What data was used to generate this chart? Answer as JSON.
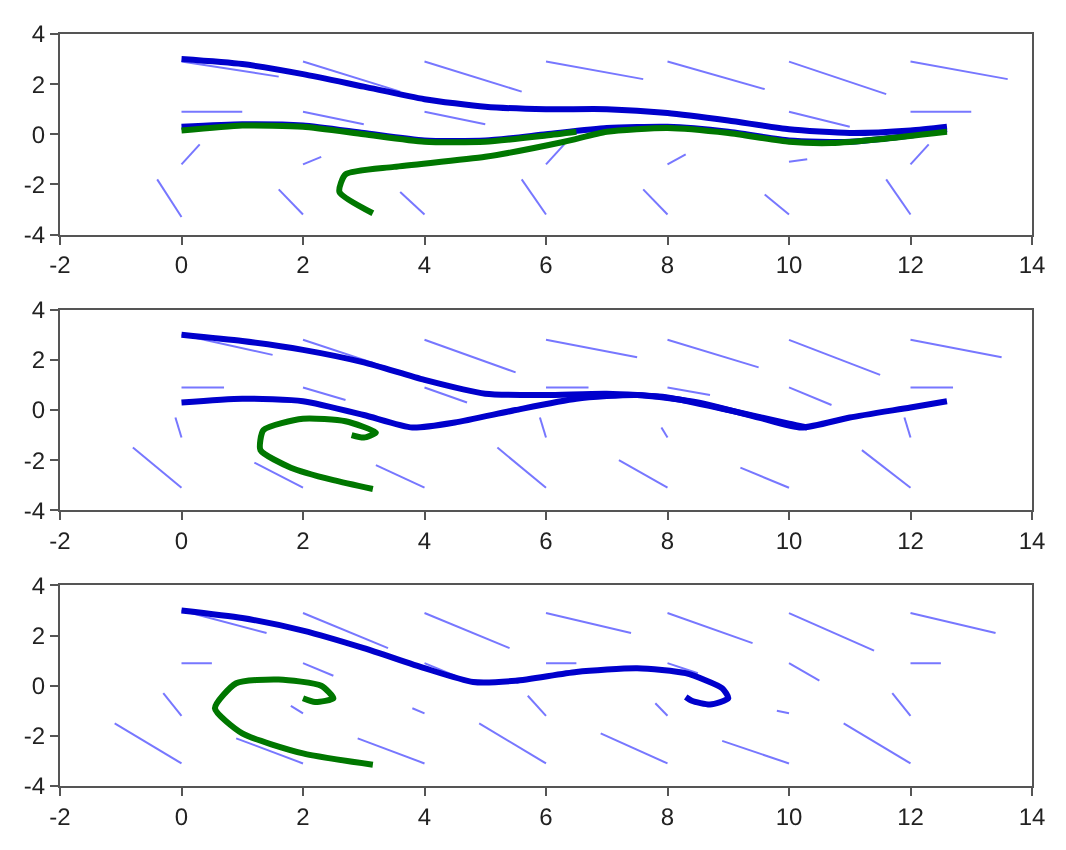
{
  "chart_data": [
    {
      "type": "line",
      "xlim": [
        -2,
        14
      ],
      "ylim": [
        -4,
        4
      ],
      "xticks": [
        -2,
        0,
        2,
        4,
        6,
        8,
        10,
        12,
        14
      ],
      "yticks": [
        -4,
        -2,
        0,
        2,
        4
      ],
      "series": [
        {
          "color": "#7777ff",
          "x": [
            0,
            1.6,
            null,
            2,
            3.6,
            null,
            4,
            5.6,
            null,
            6,
            7.6,
            null,
            8,
            9.6,
            null,
            10,
            11.6,
            null,
            12,
            13.6,
            null,
            0,
            1,
            null,
            2,
            3,
            null,
            4,
            5,
            null,
            10,
            11,
            null,
            12,
            13,
            null,
            0,
            0.3,
            null,
            2,
            2.3,
            null,
            6,
            6.3,
            null,
            8,
            8.3,
            null,
            10,
            10.3,
            null,
            12,
            12.3,
            null,
            0,
            -0.4,
            null,
            2,
            1.6,
            null,
            4,
            3.6,
            null,
            6,
            5.6,
            null,
            8,
            7.6,
            null,
            10,
            9.6,
            null,
            12,
            11.6,
            null
          ],
          "values": [
            2.9,
            2.3,
            null,
            2.9,
            1.7,
            null,
            2.9,
            1.7,
            null,
            2.9,
            2.2,
            null,
            2.9,
            1.8,
            null,
            2.9,
            1.6,
            null,
            2.9,
            2.2,
            null,
            0.9,
            0.9,
            null,
            0.9,
            0.4,
            null,
            0.9,
            0.4,
            null,
            0.9,
            0.3,
            null,
            0.9,
            0.9,
            null,
            -1.2,
            -0.4,
            null,
            -1.2,
            -0.9,
            null,
            -1.2,
            -0.4,
            null,
            -1.2,
            -0.8,
            null,
            -1.1,
            -1.0,
            null,
            -1.2,
            -0.4,
            null,
            -3.3,
            -1.8,
            null,
            -3.2,
            -2.2,
            null,
            -3.2,
            -2.3,
            null,
            -3.2,
            -1.8,
            null,
            -3.2,
            -2.2,
            null,
            -3.2,
            -2.4,
            null,
            -3.2,
            -1.8,
            null
          ]
        },
        {
          "color": "#0000cc",
          "x": [
            0,
            1,
            2,
            3,
            4,
            5,
            6,
            7,
            8,
            9,
            10,
            11,
            12,
            12.6
          ],
          "values": [
            3,
            2.8,
            2.4,
            1.9,
            1.4,
            1.1,
            1.0,
            1.0,
            0.85,
            0.55,
            0.2,
            0.05,
            0.15,
            0.3
          ]
        },
        {
          "color": "#0000cc",
          "x": [
            0,
            1,
            2,
            3,
            4,
            5,
            6,
            7,
            8,
            9,
            10,
            11,
            12,
            12.6
          ],
          "values": [
            0.3,
            0.4,
            0.35,
            0.05,
            -0.25,
            -0.25,
            0,
            0.25,
            0.3,
            0.1,
            -0.25,
            -0.3,
            -0.05,
            0.2
          ]
        },
        {
          "color": "#007700",
          "x": [
            0,
            1,
            2,
            3,
            4,
            5,
            6,
            6.5
          ],
          "values": [
            0.15,
            0.35,
            0.3,
            0,
            -0.3,
            -0.3,
            -0.05,
            0.1
          ]
        },
        {
          "color": "#007700",
          "x": [
            3.15,
            2.6,
            2.7,
            3.5,
            5,
            6.3,
            7,
            8,
            9,
            10,
            10.7,
            11.5,
            12.6
          ],
          "values": [
            -3.15,
            -2.3,
            -1.6,
            -1.3,
            -0.9,
            -0.3,
            0.1,
            0.25,
            0.05,
            -0.3,
            -0.35,
            -0.2,
            0.1
          ]
        }
      ]
    },
    {
      "type": "line",
      "xlim": [
        -2,
        14
      ],
      "ylim": [
        -4,
        4
      ],
      "xticks": [
        -2,
        0,
        2,
        4,
        6,
        8,
        10,
        12,
        14
      ],
      "yticks": [
        -4,
        -2,
        0,
        2,
        4
      ],
      "series": [
        {
          "color": "#7777ff",
          "x": [
            0,
            1.5,
            null,
            2,
            3.5,
            null,
            4,
            5.5,
            null,
            6,
            7.5,
            null,
            8,
            9.5,
            null,
            10,
            11.5,
            null,
            12,
            13.5,
            null,
            0,
            0.7,
            null,
            2,
            2.7,
            null,
            4,
            4.7,
            null,
            6,
            6.7,
            null,
            8,
            8.7,
            null,
            10,
            10.7,
            null,
            12,
            12.7,
            null,
            0,
            -0.1,
            null,
            6,
            5.9,
            null,
            8,
            7.9,
            null,
            12,
            11.9,
            null,
            0,
            -0.8,
            null,
            2,
            1.2,
            null,
            4,
            3.2,
            null,
            6,
            5.2,
            null,
            8,
            7.2,
            null,
            10,
            9.2,
            null,
            12,
            11.2,
            null
          ],
          "values": [
            3,
            2.2,
            null,
            2.8,
            1.6,
            null,
            2.8,
            1.5,
            null,
            2.8,
            2.1,
            null,
            2.8,
            1.7,
            null,
            2.8,
            1.4,
            null,
            2.8,
            2.1,
            null,
            0.9,
            0.9,
            null,
            0.9,
            0.4,
            null,
            0.9,
            0.3,
            null,
            0.9,
            0.9,
            null,
            0.9,
            0.6,
            null,
            0.9,
            0.2,
            null,
            0.9,
            0.9,
            null,
            -1.1,
            -0.3,
            null,
            -1.1,
            -0.3,
            null,
            -1.1,
            -0.7,
            null,
            -1.1,
            -0.3,
            null,
            -3.1,
            -1.5,
            null,
            -3.1,
            -2.1,
            null,
            -3.1,
            -2.2,
            null,
            -3.1,
            -1.5,
            null,
            -3.1,
            -2.0,
            null,
            -3.1,
            -2.3,
            null,
            -3.1,
            -1.6,
            null
          ]
        },
        {
          "color": "#0000cc",
          "x": [
            0,
            1,
            2,
            3,
            4,
            5,
            6,
            7,
            8,
            9,
            10,
            10.3
          ],
          "values": [
            3,
            2.75,
            2.4,
            1.9,
            1.2,
            0.65,
            0.6,
            0.65,
            0.5,
            0,
            -0.55,
            -0.7
          ]
        },
        {
          "color": "#0000cc",
          "x": [
            0,
            1,
            2,
            3,
            3.8,
            4.5,
            5.5,
            6.5,
            7.5,
            8.5,
            9.5,
            10.2,
            11,
            12,
            12.6
          ],
          "values": [
            0.3,
            0.45,
            0.35,
            -0.2,
            -0.7,
            -0.5,
            0,
            0.45,
            0.6,
            0.3,
            -0.3,
            -0.7,
            -0.3,
            0.1,
            0.35
          ]
        },
        {
          "color": "#007700",
          "x": [
            3.15,
            2.5,
            1.8,
            1.3,
            1.35,
            2,
            2.7,
            3.2,
            3,
            2.8
          ],
          "values": [
            -3.15,
            -2.8,
            -2.3,
            -1.6,
            -0.8,
            -0.35,
            -0.45,
            -0.9,
            -1.1,
            -1.0
          ]
        }
      ]
    },
    {
      "type": "line",
      "xlim": [
        -2,
        14
      ],
      "ylim": [
        -4,
        4
      ],
      "xticks": [
        -2,
        0,
        2,
        4,
        6,
        8,
        10,
        12,
        14
      ],
      "yticks": [
        -4,
        -2,
        0,
        2,
        4
      ],
      "series": [
        {
          "color": "#7777ff",
          "x": [
            0,
            1.4,
            null,
            2,
            3.4,
            null,
            4,
            5.4,
            null,
            6,
            7.4,
            null,
            8,
            9.4,
            null,
            10,
            11.4,
            null,
            12,
            13.4,
            null,
            0,
            0.5,
            null,
            2,
            2.5,
            null,
            4,
            4.5,
            null,
            6,
            6.5,
            null,
            8,
            8.5,
            null,
            10,
            10.5,
            null,
            12,
            12.5,
            null,
            0,
            -0.3,
            null,
            2,
            1.8,
            null,
            4,
            3.8,
            null,
            6,
            5.7,
            null,
            8,
            7.8,
            null,
            10,
            9.8,
            null,
            12,
            11.7,
            null,
            0,
            -1.1,
            null,
            2,
            0.9,
            null,
            4,
            2.9,
            null,
            6,
            4.9,
            null,
            8,
            6.9,
            null,
            10,
            8.9,
            null,
            12,
            10.9,
            null
          ],
          "values": [
            3,
            2.1,
            null,
            2.9,
            1.5,
            null,
            2.9,
            1.5,
            null,
            2.9,
            2.1,
            null,
            2.9,
            1.7,
            null,
            2.9,
            1.4,
            null,
            2.9,
            2.1,
            null,
            0.9,
            0.9,
            null,
            0.9,
            0.4,
            null,
            0.9,
            0.4,
            null,
            0.9,
            0.9,
            null,
            0.9,
            0.5,
            null,
            0.9,
            0.2,
            null,
            0.9,
            0.9,
            null,
            -1.2,
            -0.3,
            null,
            -1.1,
            -0.8,
            null,
            -1.1,
            -0.9,
            null,
            -1.2,
            -0.4,
            null,
            -1.2,
            -0.7,
            null,
            -1.1,
            -1.0,
            null,
            -1.2,
            -0.3,
            null,
            -3.1,
            -1.5,
            null,
            -3.1,
            -2.1,
            null,
            -3.1,
            -2.1,
            null,
            -3.1,
            -1.5,
            null,
            -3.1,
            -1.9,
            null,
            -3.1,
            -2.2,
            null,
            -3.1,
            -1.5,
            null
          ]
        },
        {
          "color": "#0000cc",
          "x": [
            0,
            1,
            2,
            3,
            4,
            4.8,
            5.5,
            6.5,
            7.5,
            8.3,
            8.9,
            9,
            8.7,
            8.4,
            8.3
          ],
          "values": [
            3,
            2.7,
            2.2,
            1.5,
            0.7,
            0.15,
            0.2,
            0.55,
            0.7,
            0.5,
            -0.1,
            -0.5,
            -0.75,
            -0.6,
            -0.45
          ]
        },
        {
          "color": "#007700",
          "x": [
            3.15,
            2,
            1,
            0.55,
            0.9,
            1.6,
            2.3,
            2.5,
            2.2,
            2
          ],
          "values": [
            -3.15,
            -2.7,
            -1.9,
            -0.9,
            0.1,
            0.25,
            0,
            -0.5,
            -0.65,
            -0.5
          ]
        }
      ]
    }
  ]
}
